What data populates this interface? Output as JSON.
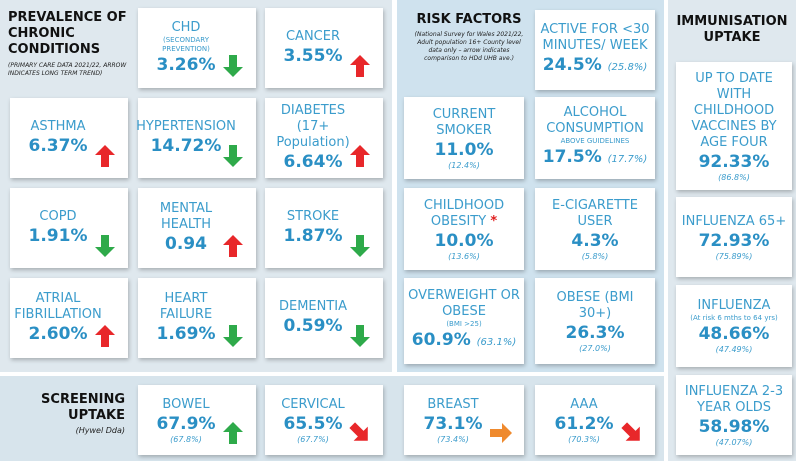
{
  "prevalence": {
    "title": "PREVALENCE OF CHRONIC CONDITIONS",
    "note": "(PRIMARY CARE DATA 2021/22, ARROW INDICATES LONG TERM TREND)",
    "items": [
      {
        "label": "CHD",
        "sub": "(SECONDARY PREVENTION)",
        "value": "3.26%"
      },
      {
        "label": "CANCER",
        "value": "3.55%"
      },
      {
        "label": "ASTHMA",
        "value": "6.37%"
      },
      {
        "label": "HYPERTENSION",
        "value": "14.72%"
      },
      {
        "label": "DIABETES (17+ Population)",
        "value": "6.64%"
      },
      {
        "label": "COPD",
        "value": "1.91%"
      },
      {
        "label": "MENTAL HEALTH",
        "value": "0.94"
      },
      {
        "label": "STROKE",
        "value": "1.87%"
      },
      {
        "label": "ATRIAL FIBRILLATION",
        "value": "2.60%"
      },
      {
        "label": "HEART FAILURE",
        "value": "1.69%"
      },
      {
        "label": "DEMENTIA",
        "value": "0.59%"
      }
    ]
  },
  "risk": {
    "title": "RISK FACTORS",
    "note": "(National Survey for Wales 2021/22, Adult population 16+ County level data only – arrow indicates comparison to HDd UHB ave.)",
    "items": [
      {
        "label": "ACTIVE FOR <30 MINUTES/ WEEK",
        "value": "24.5%",
        "compare": "(25.8%)"
      },
      {
        "label": "CURRENT SMOKER",
        "value": "11.0%",
        "compare": "(12.4%)"
      },
      {
        "label": "ALCOHOL CONSUMPTION",
        "sub": "ABOVE GUIDELINES",
        "value": "17.5%",
        "compare": "(17.7%)"
      },
      {
        "label": "CHILDHOOD OBESITY",
        "mark": "*",
        "value": "10.0%",
        "compare": "(13.6%)"
      },
      {
        "label": "E-CIGARETTE USER",
        "value": "4.3%",
        "compare": "(5.8%)"
      },
      {
        "label": "OVERWEIGHT OR OBESE",
        "sub": "(BMI >25)",
        "value": "60.9%",
        "compare": "(63.1%)"
      },
      {
        "label": "OBESE (BMI 30+)",
        "value": "26.3%",
        "compare": "(27.0%)"
      }
    ]
  },
  "immunisation": {
    "title": "IMMUNISATION UPTAKE",
    "items": [
      {
        "label": "UP TO DATE WITH CHILDHOOD VACCINES BY AGE FOUR",
        "value": "92.33%",
        "compare": "(86.8%)"
      },
      {
        "label": "INFLUENZA 65+",
        "value": "72.93%",
        "compare": "(75.89%)"
      },
      {
        "label": "INFLUENZA",
        "sub": "(At risk 6 mths to 64 yrs)",
        "value": "48.66%",
        "compare": "(47.49%)"
      },
      {
        "label": "INFLUENZA 2-3 YEAR OLDS",
        "value": "58.98%",
        "compare": "(47.07%)"
      }
    ]
  },
  "screening": {
    "title": "SCREENING UPTAKE",
    "note": "(Hywel Dda)",
    "items": [
      {
        "label": "BOWEL",
        "value": "67.9%",
        "compare": "(67.8%)"
      },
      {
        "label": "CERVICAL",
        "value": "65.5%",
        "compare": "(67.7%)"
      },
      {
        "label": "BREAST",
        "value": "73.1%",
        "compare": "(73.4%)"
      },
      {
        "label": "AAA",
        "value": "61.2%",
        "compare": "(70.3%)"
      }
    ]
  }
}
